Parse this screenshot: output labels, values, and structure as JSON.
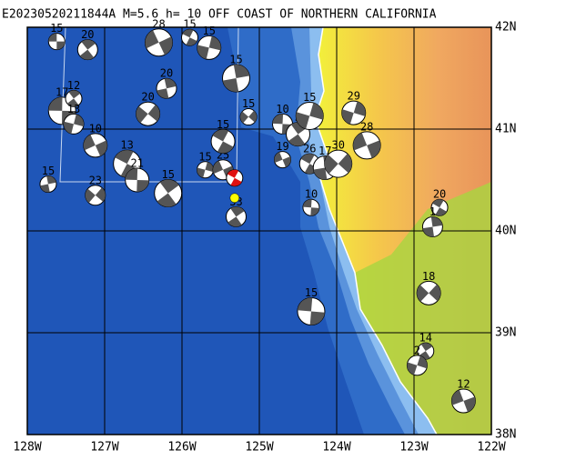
{
  "title": "E20230520211844A M=5.6 h= 10 OFF COAST OF NORTHERN CALIFORNIA",
  "map": {
    "lon_ticks": [
      {
        "value": 128,
        "label": "128W"
      },
      {
        "value": 127,
        "label": "127W"
      },
      {
        "value": 126,
        "label": "126W"
      },
      {
        "value": 125,
        "label": "125W"
      },
      {
        "value": 124,
        "label": "124W"
      },
      {
        "value": 123,
        "label": "123W"
      },
      {
        "value": 122,
        "label": "122W"
      }
    ],
    "lat_ticks": [
      {
        "value": 42,
        "label": "42N"
      },
      {
        "value": 41,
        "label": "41N"
      },
      {
        "value": 40,
        "label": "40N"
      },
      {
        "value": 39,
        "label": "39N"
      },
      {
        "value": 38,
        "label": "38N"
      }
    ],
    "events": [
      {
        "label": "15",
        "lon": 127.62,
        "lat": 41.86
      },
      {
        "label": "20",
        "lon": 127.22,
        "lat": 41.78
      },
      {
        "label": "15",
        "lon": 125.65,
        "lat": 41.8
      },
      {
        "label": "28",
        "lon": 126.3,
        "lat": 41.85
      },
      {
        "label": "15",
        "lon": 125.9,
        "lat": 41.9
      },
      {
        "label": "20",
        "lon": 126.2,
        "lat": 41.4
      },
      {
        "label": "20",
        "lon": 126.44,
        "lat": 41.15
      },
      {
        "label": "17",
        "lon": 127.55,
        "lat": 41.18
      },
      {
        "label": "12",
        "lon": 127.4,
        "lat": 41.3
      },
      {
        "label": "13",
        "lon": 127.4,
        "lat": 41.05
      },
      {
        "label": "10",
        "lon": 127.12,
        "lat": 40.84
      },
      {
        "label": "13",
        "lon": 126.71,
        "lat": 40.66
      },
      {
        "label": "15",
        "lon": 127.73,
        "lat": 40.46
      },
      {
        "label": "23",
        "lon": 127.12,
        "lat": 40.35
      },
      {
        "label": "21",
        "lon": 126.58,
        "lat": 40.5
      },
      {
        "label": "15",
        "lon": 126.18,
        "lat": 40.37
      },
      {
        "label": "15",
        "lon": 125.7,
        "lat": 40.6
      },
      {
        "label": "25",
        "lon": 125.47,
        "lat": 40.6
      },
      {
        "label": "15",
        "lon": 125.47,
        "lat": 40.88
      },
      {
        "label": "15",
        "lon": 125.3,
        "lat": 41.5
      },
      {
        "label": "15",
        "lon": 125.14,
        "lat": 41.12
      },
      {
        "label": "10",
        "lon": 124.7,
        "lat": 41.05
      },
      {
        "label": "5",
        "lon": 124.5,
        "lat": 40.95
      },
      {
        "label": "15",
        "lon": 124.35,
        "lat": 41.13
      },
      {
        "label": "19",
        "lon": 124.7,
        "lat": 40.7
      },
      {
        "label": "26",
        "lon": 124.35,
        "lat": 40.66
      },
      {
        "label": "17",
        "lon": 124.15,
        "lat": 40.62
      },
      {
        "label": "30",
        "lon": 123.98,
        "lat": 40.66
      },
      {
        "label": "10",
        "lon": 124.33,
        "lat": 40.23
      },
      {
        "label": "33",
        "lon": 125.3,
        "lat": 40.14
      },
      {
        "label": "29",
        "lon": 123.78,
        "lat": 41.16
      },
      {
        "label": "28",
        "lon": 123.61,
        "lat": 40.84
      },
      {
        "label": "20",
        "lon": 122.67,
        "lat": 40.23
      },
      {
        "label": "1",
        "lon": 122.76,
        "lat": 40.04
      },
      {
        "label": "18",
        "lon": 122.81,
        "lat": 39.39
      },
      {
        "label": "15",
        "lon": 124.33,
        "lat": 39.21
      },
      {
        "label": "14",
        "lon": 122.85,
        "lat": 38.82
      },
      {
        "label": "2",
        "lon": 122.96,
        "lat": 38.68
      },
      {
        "label": "12",
        "lon": 122.36,
        "lat": 38.33
      }
    ],
    "mainshock": {
      "lon": 125.32,
      "lat": 40.52
    }
  }
}
